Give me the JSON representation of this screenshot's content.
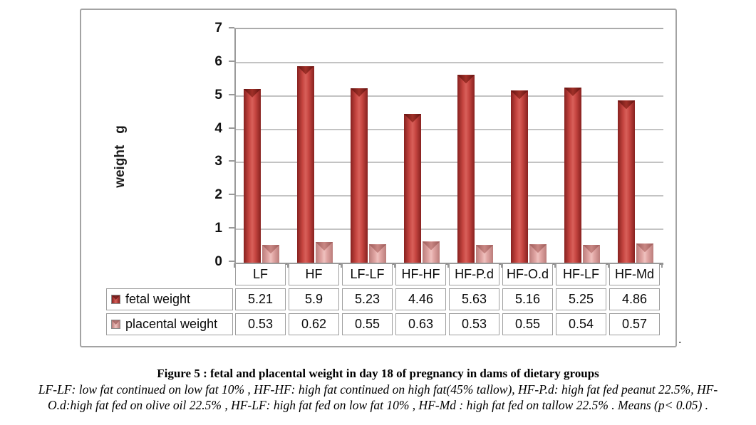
{
  "chart": {
    "y_axis_title": "weight   g",
    "y_ticks": [
      7,
      6,
      5,
      4,
      3,
      2,
      1,
      0
    ]
  },
  "chart_data": {
    "type": "bar",
    "title": "",
    "categories": [
      "LF",
      "HF",
      "LF-LF",
      "HF-HF",
      "HF-P.d",
      "HF-O.d",
      "HF-LF",
      "HF-Md"
    ],
    "series": [
      {
        "name": "fetal weight",
        "values": [
          "5.21",
          "5.9",
          "5.23",
          "4.46",
          "5.63",
          "5.16",
          "5.25",
          "4.86"
        ],
        "color": "#c0504d"
      },
      {
        "name": "placental weight",
        "values": [
          "0.53",
          "0.62",
          "0.55",
          "0.63",
          "0.53",
          "0.55",
          "0.54",
          "0.57"
        ],
        "color": "#d99694"
      }
    ],
    "xlabel": "",
    "ylabel": "weight g",
    "ylim": [
      0,
      7
    ],
    "grid": true,
    "legend_position": "left-of-table-rows"
  },
  "trailing_dot": ".",
  "caption": {
    "title": "Figure 5 : fetal and placental weight in day 18 of pregnancy in dams of dietary groups",
    "body": "LF-LF: low fat continued on low fat 10% , HF-HF: high fat continued on high fat(45% tallow), HF-P.d: high fat fed peanut 22.5%, HF-O.d:high fat fed on olive oil 22.5% , HF-LF: high fat fed on low fat 10% , HF-Md : high fat fed on tallow 22.5% . Means (p< 0.05) ."
  }
}
